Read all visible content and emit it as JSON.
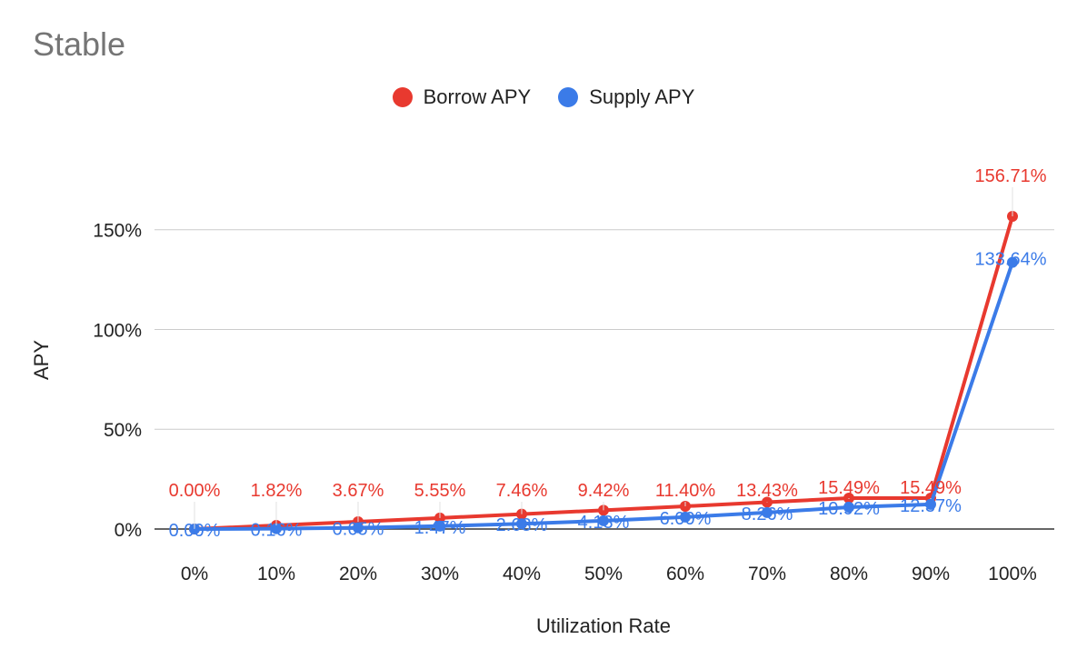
{
  "chart_data": {
    "type": "line",
    "title": "Stable",
    "xlabel": "Utilization Rate",
    "ylabel": "APY",
    "categories": [
      "0%",
      "10%",
      "20%",
      "30%",
      "40%",
      "50%",
      "60%",
      "70%",
      "80%",
      "90%",
      "100%"
    ],
    "series": [
      {
        "name": "Borrow APY",
        "color": "#e8392f",
        "values": [
          0.0,
          1.82,
          3.67,
          5.55,
          7.46,
          9.42,
          11.4,
          13.43,
          15.49,
          15.49,
          156.71
        ],
        "labels": [
          "0.00%",
          "1.82%",
          "3.67%",
          "5.55%",
          "7.46%",
          "9.42%",
          "11.40%",
          "13.43%",
          "15.49%",
          "15.49%",
          "156.71%"
        ]
      },
      {
        "name": "Supply APY",
        "color": "#3b7be8",
        "values": [
          0.0,
          0.16,
          0.65,
          1.47,
          2.63,
          4.13,
          6.0,
          8.26,
          10.92,
          12.37,
          133.64
        ],
        "labels": [
          "0.00%",
          "0.16%",
          "0.65%",
          "1.47%",
          "2.63%",
          "4.13%",
          "6.00%",
          "8.26%",
          "10.92%",
          "12.37%",
          "133.64%"
        ]
      }
    ],
    "yticks": [
      0,
      50,
      100,
      150
    ],
    "ytick_labels": [
      "0%",
      "50%",
      "100%",
      "150%"
    ],
    "ylim": [
      0,
      156.71
    ],
    "grid": true,
    "legend_position": "top-center"
  }
}
